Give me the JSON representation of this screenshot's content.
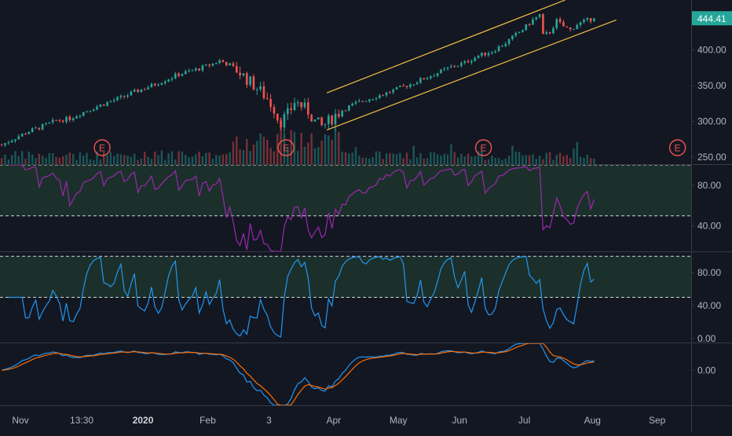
{
  "theme": {
    "background": "#131722",
    "pane_border": "#363a45",
    "axis_text": "#b2b5be",
    "candle_up": "#26a69a",
    "candle_down": "#ef5350",
    "channel_line": "#f5c242",
    "rsi_line": "#9c27b0",
    "stoch_line": "#2196f3",
    "macd_line": "#2196f3",
    "signal_line": "#ff6d00",
    "band_fill": "#1f3a2e",
    "price_label_bg": "#26a69a",
    "earnings_color": "#ef5350"
  },
  "price_label": "444.41",
  "earnings_marker": "E",
  "chart_data": [
    {
      "type": "candlestick",
      "pane": "price",
      "y_ticks": [
        "250.00",
        "300.00",
        "350.00",
        "400.00"
      ],
      "ylim": [
        240,
        470
      ],
      "last_price": 444.41,
      "path": [
        [
          0,
          267
        ],
        [
          4,
          277
        ],
        [
          8,
          286
        ],
        [
          12,
          293
        ],
        [
          16,
          301
        ],
        [
          20,
          304
        ],
        [
          24,
          313
        ],
        [
          28,
          321
        ],
        [
          32,
          328
        ],
        [
          36,
          335
        ],
        [
          40,
          343
        ],
        [
          44,
          350
        ],
        [
          48,
          358
        ],
        [
          52,
          366
        ],
        [
          56,
          371
        ],
        [
          60,
          377
        ],
        [
          64,
          385
        ],
        [
          67,
          379
        ],
        [
          70,
          368
        ],
        [
          73,
          355
        ],
        [
          76,
          342
        ],
        [
          78,
          332
        ],
        [
          80,
          318
        ],
        [
          81,
          305
        ],
        [
          82,
          300
        ],
        [
          84,
          310
        ],
        [
          85,
          318
        ],
        [
          86,
          328
        ],
        [
          88,
          322
        ],
        [
          90,
          314
        ],
        [
          92,
          300
        ],
        [
          94,
          293
        ],
        [
          96,
          300
        ],
        [
          98,
          309
        ],
        [
          100,
          316
        ],
        [
          104,
          325
        ],
        [
          108,
          332
        ],
        [
          112,
          338
        ],
        [
          116,
          345
        ],
        [
          120,
          352
        ],
        [
          124,
          360
        ],
        [
          128,
          368
        ],
        [
          132,
          376
        ],
        [
          136,
          382
        ],
        [
          140,
          392
        ],
        [
          144,
          398
        ],
        [
          148,
          410
        ],
        [
          152,
          425
        ],
        [
          154,
          433
        ],
        [
          156,
          442
        ],
        [
          158,
          449
        ],
        [
          159,
          420
        ],
        [
          161,
          425
        ],
        [
          163,
          441
        ],
        [
          165,
          433
        ],
        [
          167,
          428
        ],
        [
          169,
          436
        ],
        [
          171,
          440
        ],
        [
          174,
          444.41
        ]
      ],
      "channel": {
        "upper": [
          [
            96,
            340
          ],
          [
            166,
            470
          ]
        ],
        "lower": [
          [
            96,
            288
          ],
          [
            181,
            442
          ]
        ]
      },
      "earnings_markers_at": [
        30,
        84,
        142,
        199
      ]
    },
    {
      "type": "line",
      "pane": "rsi",
      "y_ticks": [
        "40.00",
        "80.00"
      ],
      "ylim": [
        15,
        100
      ],
      "band": [
        50,
        100
      ],
      "dashed_levels": [
        50,
        100
      ]
    },
    {
      "type": "line",
      "pane": "stochastic_rsi",
      "y_ticks": [
        "0.00",
        "40.00",
        "80.00"
      ],
      "ylim": [
        -5,
        105
      ],
      "band": [
        50,
        100
      ],
      "dashed_levels": [
        50,
        100
      ]
    },
    {
      "type": "line",
      "pane": "macd",
      "y_ticks": [
        "0.00"
      ],
      "ylim": [
        -13,
        10
      ],
      "series_colors": [
        "#2196f3",
        "#ff6d00"
      ]
    }
  ],
  "x_axis": {
    "x_range": [
      0,
      203
    ],
    "ticks": [
      {
        "label": "Nov",
        "at": 6,
        "bold": false
      },
      {
        "label": "13:30",
        "at": 24,
        "bold": false
      },
      {
        "label": "2020",
        "at": 42,
        "bold": true
      },
      {
        "label": "Feb",
        "at": 61,
        "bold": false
      },
      {
        "label": "3",
        "at": 79,
        "bold": false
      },
      {
        "label": "Apr",
        "at": 98,
        "bold": false
      },
      {
        "label": "May",
        "at": 117,
        "bold": false
      },
      {
        "label": "Jun",
        "at": 135,
        "bold": false
      },
      {
        "label": "Jul",
        "at": 154,
        "bold": false
      },
      {
        "label": "Aug",
        "at": 174,
        "bold": false
      },
      {
        "label": "Sep",
        "at": 193,
        "bold": false
      }
    ]
  }
}
